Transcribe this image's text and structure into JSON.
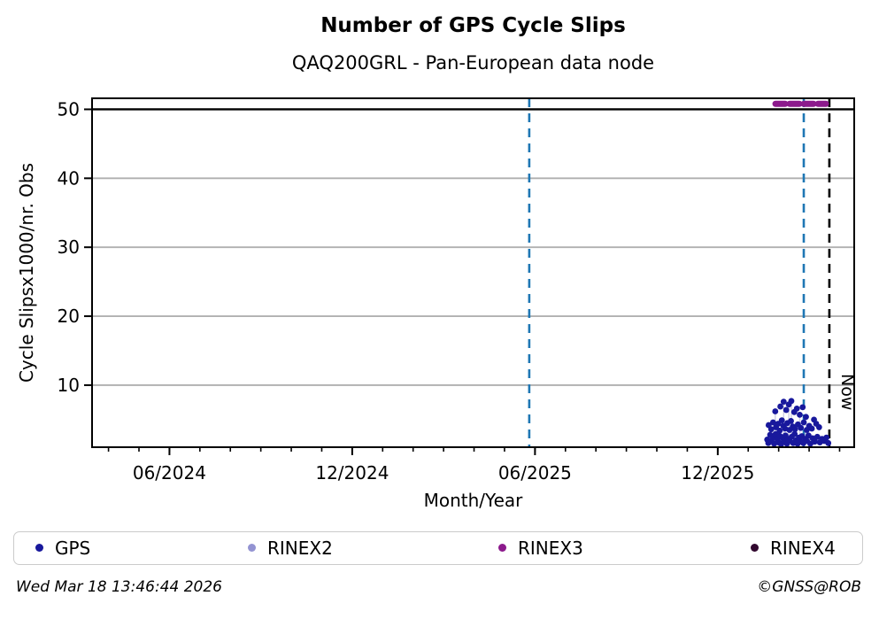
{
  "header": {
    "title": "Number of GPS Cycle Slips",
    "subtitle": "QAQ200GRL - Pan-European data node"
  },
  "footer": {
    "timestamp": "Wed Mar 18 13:46:44 2026",
    "copyright": "©GNSS@ROB"
  },
  "legend": {
    "items": [
      {
        "label": "GPS",
        "color": "#18189c"
      },
      {
        "label": "RINEX2",
        "color": "#9393d2"
      },
      {
        "label": "RINEX3",
        "color": "#8c1a8c"
      },
      {
        "label": "RINEX4",
        "color": "#31082f"
      }
    ]
  },
  "chart_data": {
    "type": "scatter",
    "title": "Number of GPS Cycle Slips",
    "subtitle": "QAQ200GRL - Pan-European data node",
    "xlabel": "Month/Year",
    "ylabel": "Cycle Slipsx1000/nr. Obs",
    "x_unit": "decimal_year",
    "xlim": [
      2024.205,
      2026.29
    ],
    "ylim": [
      1.0,
      51.6
    ],
    "grid": true,
    "grid_color": "#b0b0b0",
    "yticks": [
      10,
      20,
      30,
      40,
      50
    ],
    "xticks": [
      {
        "label": "06/2024",
        "year": 2024.4167
      },
      {
        "label": "12/2024",
        "year": 2024.9167
      },
      {
        "label": "06/2025",
        "year": 2025.4167
      },
      {
        "label": "12/2025",
        "year": 2025.9167
      }
    ],
    "minor_xticks_months": {
      "start_year": 2024,
      "start_month": 4,
      "end_year": 2026,
      "end_month": 4
    },
    "threshold_line": {
      "y": 50,
      "color": "#000000"
    },
    "vlines": [
      {
        "year": 2025.401,
        "color": "#1f77b4",
        "style": "dashed"
      },
      {
        "year": 2026.152,
        "color": "#1f77b4",
        "style": "dashed"
      },
      {
        "year": 2026.222,
        "color": "#000000",
        "style": "dashed",
        "label": "Now"
      }
    ],
    "now_annotation": {
      "text": "Now",
      "year": 2026.222,
      "value": 9.0,
      "rotation": 90
    },
    "rinex3_segment": {
      "y": 50.8,
      "x_start": 2026.0746,
      "x_end": 2026.2127,
      "color": "#8c1a8c"
    },
    "stems": {
      "color": "#c3c3e0",
      "lines": [
        {
          "year": 2026.074,
          "y1": 1.8,
          "y2": 6.2
        },
        {
          "year": 2026.097,
          "y1": 1.8,
          "y2": 7.6
        },
        {
          "year": 2026.111,
          "y1": 2.0,
          "y2": 7.2
        },
        {
          "year": 2026.118,
          "y1": 2.3,
          "y2": 7.7
        },
        {
          "year": 2026.141,
          "y1": 1.8,
          "y2": 5.7
        },
        {
          "year": 2026.158,
          "y1": 1.6,
          "y2": 5.4
        }
      ]
    },
    "series": [
      {
        "name": "GPS",
        "color": "#18189c",
        "marker": "circle",
        "points": [
          [
            2026.074,
            6.2
          ],
          [
            2026.088,
            6.9
          ],
          [
            2026.097,
            7.6
          ],
          [
            2026.104,
            6.4
          ],
          [
            2026.111,
            7.2
          ],
          [
            2026.118,
            7.7
          ],
          [
            2026.126,
            6.1
          ],
          [
            2026.133,
            6.6
          ],
          [
            2026.141,
            5.7
          ],
          [
            2026.149,
            6.8
          ],
          [
            2026.158,
            5.4
          ],
          [
            2026.18,
            5.0
          ],
          [
            2026.056,
            4.2
          ],
          [
            2026.063,
            3.6
          ],
          [
            2026.068,
            4.6
          ],
          [
            2026.076,
            3.9
          ],
          [
            2026.082,
            4.4
          ],
          [
            2026.086,
            3.4
          ],
          [
            2026.092,
            4.9
          ],
          [
            2026.096,
            4.1
          ],
          [
            2026.101,
            3.7
          ],
          [
            2026.107,
            4.5
          ],
          [
            2026.113,
            3.5
          ],
          [
            2026.117,
            4.8
          ],
          [
            2026.122,
            4.0
          ],
          [
            2026.128,
            3.6
          ],
          [
            2026.136,
            4.3
          ],
          [
            2026.144,
            3.8
          ],
          [
            2026.152,
            4.6
          ],
          [
            2026.16,
            3.5
          ],
          [
            2026.167,
            4.1
          ],
          [
            2026.174,
            3.7
          ],
          [
            2026.186,
            4.4
          ],
          [
            2026.194,
            3.9
          ],
          [
            2026.052,
            2.1
          ],
          [
            2026.055,
            1.6
          ],
          [
            2026.06,
            2.8
          ],
          [
            2026.064,
            1.9
          ],
          [
            2026.067,
            2.4
          ],
          [
            2026.071,
            1.5
          ],
          [
            2026.075,
            2.9
          ],
          [
            2026.079,
            2.2
          ],
          [
            2026.083,
            1.7
          ],
          [
            2026.087,
            2.6
          ],
          [
            2026.09,
            1.4
          ],
          [
            2026.094,
            2.3
          ],
          [
            2026.098,
            1.8
          ],
          [
            2026.102,
            2.7
          ],
          [
            2026.106,
            1.5
          ],
          [
            2026.109,
            2.2
          ],
          [
            2026.114,
            1.9
          ],
          [
            2026.119,
            2.5
          ],
          [
            2026.123,
            1.6
          ],
          [
            2026.127,
            2.9
          ],
          [
            2026.131,
            2.0
          ],
          [
            2026.135,
            1.5
          ],
          [
            2026.139,
            2.4
          ],
          [
            2026.143,
            1.8
          ],
          [
            2026.147,
            2.6
          ],
          [
            2026.151,
            1.6
          ],
          [
            2026.156,
            2.2
          ],
          [
            2026.161,
            1.9
          ],
          [
            2026.165,
            2.7
          ],
          [
            2026.17,
            1.5
          ],
          [
            2026.176,
            2.3
          ],
          [
            2026.182,
            1.8
          ],
          [
            2026.189,
            2.5
          ],
          [
            2026.196,
            1.7
          ],
          [
            2026.202,
            2.2
          ],
          [
            2026.208,
            1.9
          ],
          [
            2026.214,
            2.4
          ],
          [
            2026.219,
            1.6
          ]
        ]
      },
      {
        "name": "RINEX2",
        "color": "#9393d2",
        "marker": "circle",
        "points": []
      },
      {
        "name": "RINEX3",
        "color": "#8c1a8c",
        "marker": "thick-dashed-line-at-51",
        "points": []
      },
      {
        "name": "RINEX4",
        "color": "#31082f",
        "marker": "circle",
        "points": []
      }
    ],
    "legend_position": "bottom",
    "axis_color": "#000000"
  }
}
